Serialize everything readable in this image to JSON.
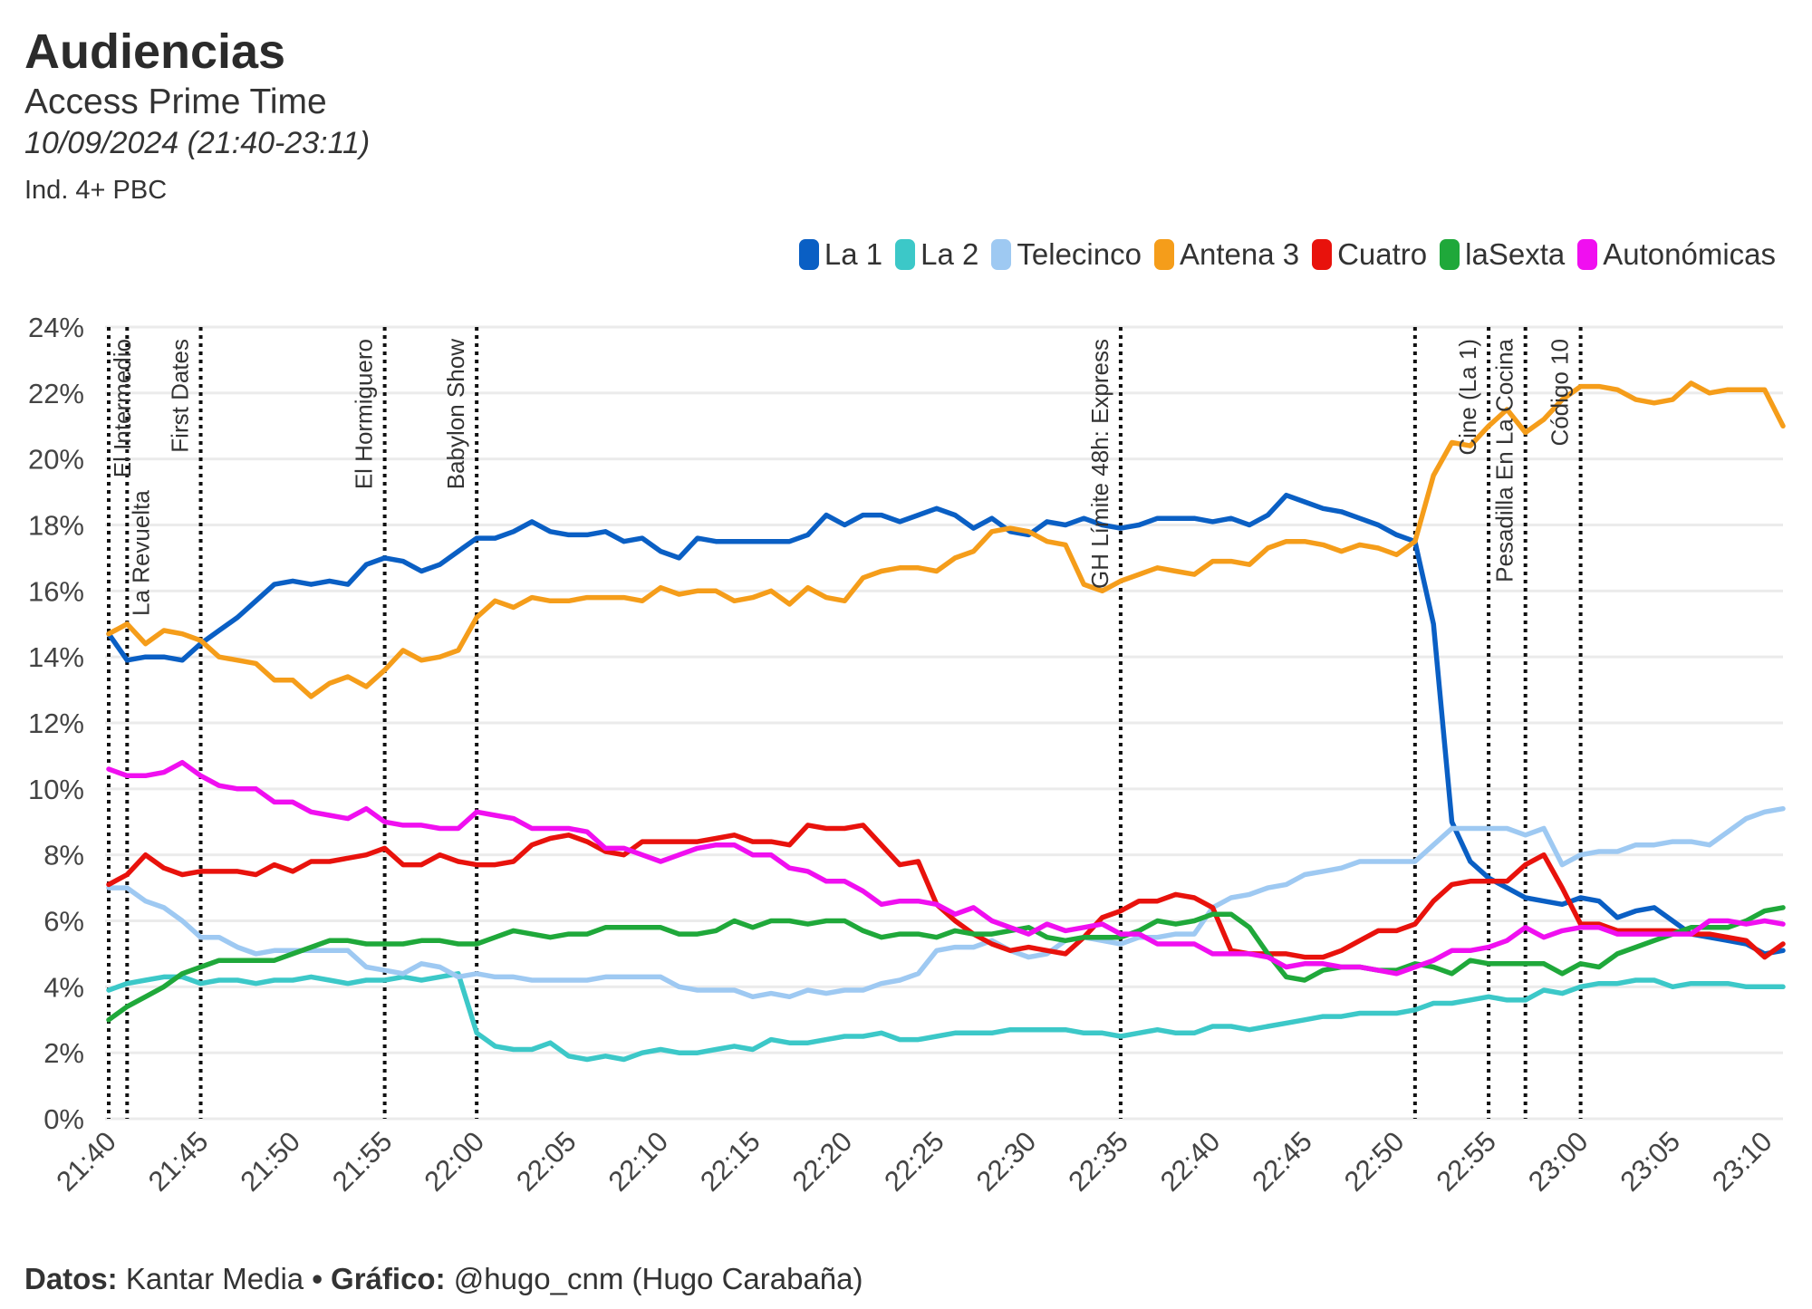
{
  "header": {
    "title": "Audiencias",
    "subtitle": "Access Prime Time",
    "date": "10/09/2024 (21:40-23:11)",
    "target": "Ind. 4+ PBC"
  },
  "footer": {
    "data_label": "Datos:",
    "data_value": "Kantar Media",
    "separator": "•",
    "chart_label": "Gráfico:",
    "chart_value": "@hugo_cnm (Hugo Carabaña)"
  },
  "chart_data": {
    "type": "line",
    "title": "Audiencias",
    "xlabel": "",
    "ylabel": "",
    "x_start": "21:40",
    "x_step_minutes": 1,
    "x_range_minutes": [
      0,
      91
    ],
    "ylim": [
      0,
      24
    ],
    "y_ticks": [
      "0%",
      "2%",
      "4%",
      "6%",
      "8%",
      "10%",
      "12%",
      "14%",
      "16%",
      "18%",
      "20%",
      "22%",
      "24%"
    ],
    "y_tick_values": [
      0,
      2,
      4,
      6,
      8,
      10,
      12,
      14,
      16,
      18,
      20,
      22,
      24
    ],
    "x_ticks": [
      "21:40",
      "21:45",
      "21:50",
      "21:55",
      "22:00",
      "22:05",
      "22:10",
      "22:15",
      "22:20",
      "22:25",
      "22:30",
      "22:35",
      "22:40",
      "22:45",
      "22:50",
      "22:55",
      "23:00",
      "23:05",
      "23:10"
    ],
    "x_tick_minutes": [
      0,
      5,
      10,
      15,
      20,
      25,
      30,
      35,
      40,
      45,
      50,
      55,
      60,
      65,
      70,
      75,
      80,
      85,
      90
    ],
    "grid": true,
    "legend_position": "top-right",
    "annotations": [
      {
        "minute": 0,
        "label": "El Intermedio",
        "side": "right"
      },
      {
        "minute": 1,
        "label": "La Revuelta",
        "side": "right"
      },
      {
        "minute": 5,
        "label": "First Dates",
        "side": "left"
      },
      {
        "minute": 15,
        "label": "El Hormiguero",
        "side": "left"
      },
      {
        "minute": 20,
        "label": "Babylon Show",
        "side": "left"
      },
      {
        "minute": 55,
        "label": "GH Límite 48h: Express",
        "side": "left"
      },
      {
        "minute": 71,
        "label": "",
        "side": "left"
      },
      {
        "minute": 75,
        "label": "Cine (La 1)",
        "side": "left"
      },
      {
        "minute": 77,
        "label": "Pesadilla En La Cocina",
        "side": "left"
      },
      {
        "minute": 80,
        "label": "Código 10",
        "side": "left"
      }
    ],
    "series": [
      {
        "name": "La 1",
        "color": "#0a5fc4",
        "values": [
          14.7,
          13.9,
          14.0,
          14.0,
          13.9,
          14.4,
          14.8,
          15.2,
          15.7,
          16.2,
          16.3,
          16.2,
          16.3,
          16.2,
          16.8,
          17.0,
          16.9,
          16.6,
          16.8,
          17.2,
          17.6,
          17.6,
          17.8,
          18.1,
          17.8,
          17.7,
          17.7,
          17.8,
          17.5,
          17.6,
          17.2,
          17.0,
          17.6,
          17.5,
          17.5,
          17.5,
          17.5,
          17.5,
          17.7,
          18.3,
          18.0,
          18.3,
          18.3,
          18.1,
          18.3,
          18.5,
          18.3,
          17.9,
          18.2,
          17.8,
          17.7,
          18.1,
          18.0,
          18.2,
          18.0,
          17.9,
          18.0,
          18.2,
          18.2,
          18.2,
          18.1,
          18.2,
          18.0,
          18.3,
          18.9,
          18.7,
          18.5,
          18.4,
          18.2,
          18.0,
          17.7,
          17.5,
          15.0,
          9.0,
          7.8,
          7.3,
          7.0,
          6.7,
          6.6,
          6.5,
          6.7,
          6.6,
          6.1,
          6.3,
          6.4,
          6.0,
          5.6,
          5.5,
          5.4,
          5.3,
          5.0,
          5.1
        ]
      },
      {
        "name": "La 2",
        "color": "#3cc8c8",
        "values": [
          3.9,
          4.1,
          4.2,
          4.3,
          4.3,
          4.1,
          4.2,
          4.2,
          4.1,
          4.2,
          4.2,
          4.3,
          4.2,
          4.1,
          4.2,
          4.2,
          4.3,
          4.2,
          4.3,
          4.4,
          2.6,
          2.2,
          2.1,
          2.1,
          2.3,
          1.9,
          1.8,
          1.9,
          1.8,
          2.0,
          2.1,
          2.0,
          2.0,
          2.1,
          2.2,
          2.1,
          2.4,
          2.3,
          2.3,
          2.4,
          2.5,
          2.5,
          2.6,
          2.4,
          2.4,
          2.5,
          2.6,
          2.6,
          2.6,
          2.7,
          2.7,
          2.7,
          2.7,
          2.6,
          2.6,
          2.5,
          2.6,
          2.7,
          2.6,
          2.6,
          2.8,
          2.8,
          2.7,
          2.8,
          2.9,
          3.0,
          3.1,
          3.1,
          3.2,
          3.2,
          3.2,
          3.3,
          3.5,
          3.5,
          3.6,
          3.7,
          3.6,
          3.6,
          3.9,
          3.8,
          4.0,
          4.1,
          4.1,
          4.2,
          4.2,
          4.0,
          4.1,
          4.1,
          4.1,
          4.0,
          4.0,
          4.0
        ]
      },
      {
        "name": "Telecinco",
        "color": "#9ec9f2",
        "values": [
          7.0,
          7.0,
          6.6,
          6.4,
          6.0,
          5.5,
          5.5,
          5.2,
          5.0,
          5.1,
          5.1,
          5.1,
          5.1,
          5.1,
          4.6,
          4.5,
          4.4,
          4.7,
          4.6,
          4.3,
          4.4,
          4.3,
          4.3,
          4.2,
          4.2,
          4.2,
          4.2,
          4.3,
          4.3,
          4.3,
          4.3,
          4.0,
          3.9,
          3.9,
          3.9,
          3.7,
          3.8,
          3.7,
          3.9,
          3.8,
          3.9,
          3.9,
          4.1,
          4.2,
          4.4,
          5.1,
          5.2,
          5.2,
          5.4,
          5.1,
          4.9,
          5.0,
          5.4,
          5.5,
          5.4,
          5.3,
          5.5,
          5.5,
          5.6,
          5.6,
          6.4,
          6.7,
          6.8,
          7.0,
          7.1,
          7.4,
          7.5,
          7.6,
          7.8,
          7.8,
          7.8,
          7.8,
          8.3,
          8.8,
          8.8,
          8.8,
          8.8,
          8.6,
          8.8,
          7.7,
          8.0,
          8.1,
          8.1,
          8.3,
          8.3,
          8.4,
          8.4,
          8.3,
          8.7,
          9.1,
          9.3,
          9.4
        ]
      },
      {
        "name": "Antena 3",
        "color": "#f59d1a",
        "values": [
          14.7,
          15.0,
          14.4,
          14.8,
          14.7,
          14.5,
          14.0,
          13.9,
          13.8,
          13.3,
          13.3,
          12.8,
          13.2,
          13.4,
          13.1,
          13.6,
          14.2,
          13.9,
          14.0,
          14.2,
          15.2,
          15.7,
          15.5,
          15.8,
          15.7,
          15.7,
          15.8,
          15.8,
          15.8,
          15.7,
          16.1,
          15.9,
          16.0,
          16.0,
          15.7,
          15.8,
          16.0,
          15.6,
          16.1,
          15.8,
          15.7,
          16.4,
          16.6,
          16.7,
          16.7,
          16.6,
          17.0,
          17.2,
          17.8,
          17.9,
          17.8,
          17.5,
          17.4,
          16.2,
          16.0,
          16.3,
          16.5,
          16.7,
          16.6,
          16.5,
          16.9,
          16.9,
          16.8,
          17.3,
          17.5,
          17.5,
          17.4,
          17.2,
          17.4,
          17.3,
          17.1,
          17.5,
          19.5,
          20.5,
          20.4,
          21.0,
          21.5,
          20.8,
          21.2,
          21.8,
          22.2,
          22.2,
          22.1,
          21.8,
          21.7,
          21.8,
          22.3,
          22.0,
          22.1,
          22.1,
          22.1,
          21.0
        ]
      },
      {
        "name": "Cuatro",
        "color": "#e8120c",
        "values": [
          7.1,
          7.4,
          8.0,
          7.6,
          7.4,
          7.5,
          7.5,
          7.5,
          7.4,
          7.7,
          7.5,
          7.8,
          7.8,
          7.9,
          8.0,
          8.2,
          7.7,
          7.7,
          8.0,
          7.8,
          7.7,
          7.7,
          7.8,
          8.3,
          8.5,
          8.6,
          8.4,
          8.1,
          8.0,
          8.4,
          8.4,
          8.4,
          8.4,
          8.5,
          8.6,
          8.4,
          8.4,
          8.3,
          8.9,
          8.8,
          8.8,
          8.9,
          8.3,
          7.7,
          7.8,
          6.5,
          6.0,
          5.6,
          5.3,
          5.1,
          5.2,
          5.1,
          5.0,
          5.5,
          6.1,
          6.3,
          6.6,
          6.6,
          6.8,
          6.7,
          6.4,
          5.1,
          5.0,
          5.0,
          5.0,
          4.9,
          4.9,
          5.1,
          5.4,
          5.7,
          5.7,
          5.9,
          6.6,
          7.1,
          7.2,
          7.2,
          7.2,
          7.7,
          8.0,
          7.0,
          5.9,
          5.9,
          5.7,
          5.7,
          5.7,
          5.7,
          5.6,
          5.6,
          5.5,
          5.4,
          4.9,
          5.3
        ]
      },
      {
        "name": "laSexta",
        "color": "#1fa83a",
        "values": [
          3.0,
          3.4,
          3.7,
          4.0,
          4.4,
          4.6,
          4.8,
          4.8,
          4.8,
          4.8,
          5.0,
          5.2,
          5.4,
          5.4,
          5.3,
          5.3,
          5.3,
          5.4,
          5.4,
          5.3,
          5.3,
          5.5,
          5.7,
          5.6,
          5.5,
          5.6,
          5.6,
          5.8,
          5.8,
          5.8,
          5.8,
          5.6,
          5.6,
          5.7,
          6.0,
          5.8,
          6.0,
          6.0,
          5.9,
          6.0,
          6.0,
          5.7,
          5.5,
          5.6,
          5.6,
          5.5,
          5.7,
          5.6,
          5.6,
          5.7,
          5.8,
          5.5,
          5.4,
          5.5,
          5.5,
          5.5,
          5.7,
          6.0,
          5.9,
          6.0,
          6.2,
          6.2,
          5.8,
          5.0,
          4.3,
          4.2,
          4.5,
          4.6,
          4.6,
          4.5,
          4.5,
          4.7,
          4.6,
          4.4,
          4.8,
          4.7,
          4.7,
          4.7,
          4.7,
          4.4,
          4.7,
          4.6,
          5.0,
          5.2,
          5.4,
          5.6,
          5.8,
          5.8,
          5.8,
          6.0,
          6.3,
          6.4
        ]
      },
      {
        "name": "Autonómicas",
        "color": "#f00ff0",
        "values": [
          10.6,
          10.4,
          10.4,
          10.5,
          10.8,
          10.4,
          10.1,
          10.0,
          10.0,
          9.6,
          9.6,
          9.3,
          9.2,
          9.1,
          9.4,
          9.0,
          8.9,
          8.9,
          8.8,
          8.8,
          9.3,
          9.2,
          9.1,
          8.8,
          8.8,
          8.8,
          8.7,
          8.2,
          8.2,
          8.0,
          7.8,
          8.0,
          8.2,
          8.3,
          8.3,
          8.0,
          8.0,
          7.6,
          7.5,
          7.2,
          7.2,
          6.9,
          6.5,
          6.6,
          6.6,
          6.5,
          6.2,
          6.4,
          6.0,
          5.8,
          5.6,
          5.9,
          5.7,
          5.8,
          5.9,
          5.6,
          5.6,
          5.3,
          5.3,
          5.3,
          5.0,
          5.0,
          5.0,
          4.9,
          4.6,
          4.7,
          4.7,
          4.6,
          4.6,
          4.5,
          4.4,
          4.6,
          4.8,
          5.1,
          5.1,
          5.2,
          5.4,
          5.8,
          5.5,
          5.7,
          5.8,
          5.8,
          5.6,
          5.6,
          5.6,
          5.6,
          5.6,
          6.0,
          6.0,
          5.9,
          6.0,
          5.9
        ]
      }
    ]
  }
}
